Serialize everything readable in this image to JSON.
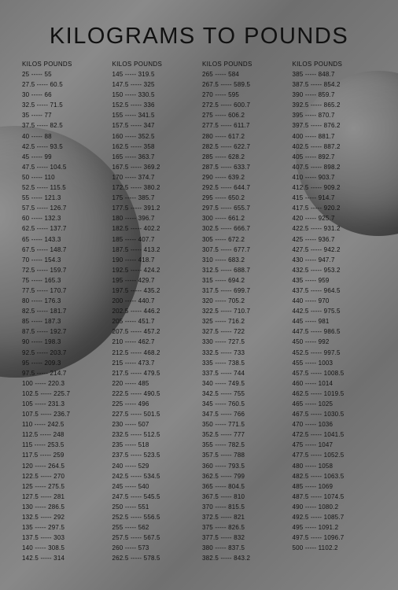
{
  "title": "KILOGRAMS TO POUNDS",
  "header": {
    "kilos": "KILOS",
    "pounds": "POUNDS"
  },
  "columns": [
    [
      [
        "25",
        "55"
      ],
      [
        "27.5",
        "60.5"
      ],
      [
        "30",
        "66"
      ],
      [
        "32.5",
        "71.5"
      ],
      [
        "35",
        "77"
      ],
      [
        "37.5",
        "82.5"
      ],
      [
        "40",
        "88"
      ],
      [
        "42.5",
        "93.5"
      ],
      [
        "45",
        "99"
      ],
      [
        "47.5",
        "104.5"
      ],
      [
        "50",
        "110"
      ],
      [
        "52.5",
        "115.5"
      ],
      [
        "55",
        "121.3"
      ],
      [
        "57.5",
        "126.7"
      ],
      [
        "60",
        "132.3"
      ],
      [
        "62.5",
        "137.7"
      ],
      [
        "65",
        "143.3"
      ],
      [
        "67.5",
        "148.7"
      ],
      [
        "70",
        "154.3"
      ],
      [
        "72.5",
        "159.7"
      ],
      [
        "75",
        "165.3"
      ],
      [
        "77.5",
        "170.7"
      ],
      [
        "80",
        "176.3"
      ],
      [
        "82.5",
        "181.7"
      ],
      [
        "85",
        "187.3"
      ],
      [
        "87.5",
        "192.7"
      ],
      [
        "90",
        "198.3"
      ],
      [
        "92.5",
        "203.7"
      ],
      [
        "95",
        "209.3"
      ],
      [
        "97.5",
        "214.7"
      ],
      [
        "100",
        "220.3"
      ],
      [
        "102.5",
        "225.7"
      ],
      [
        "105",
        "231.3"
      ],
      [
        "107.5",
        "236.7"
      ],
      [
        "110",
        "242.5"
      ],
      [
        "112.5",
        "248"
      ],
      [
        "115",
        "253.5"
      ],
      [
        "117.5",
        "259"
      ],
      [
        "120",
        "264.5"
      ],
      [
        "122.5",
        "270"
      ],
      [
        "125",
        "275.5"
      ],
      [
        "127.5",
        "281"
      ],
      [
        "130",
        "286.5"
      ],
      [
        "132.5",
        "292"
      ],
      [
        "135",
        "297.5"
      ],
      [
        "137.5",
        "303"
      ],
      [
        "140",
        "308.5"
      ],
      [
        "142.5",
        "314"
      ]
    ],
    [
      [
        "145",
        "319.5"
      ],
      [
        "147.5",
        "325"
      ],
      [
        "150",
        "330.5"
      ],
      [
        "152.5",
        "336"
      ],
      [
        "155",
        "341.5"
      ],
      [
        "157.5",
        "347"
      ],
      [
        "160",
        "352.5"
      ],
      [
        "162.5",
        "358"
      ],
      [
        "165",
        "363.7"
      ],
      [
        "167.5",
        "369.2"
      ],
      [
        "170",
        "374.7"
      ],
      [
        "172.5",
        "380.2"
      ],
      [
        "175",
        "385.7"
      ],
      [
        "177.5",
        "391.2"
      ],
      [
        "180",
        "396.7"
      ],
      [
        "182.5",
        "402.2"
      ],
      [
        "185",
        "407.7"
      ],
      [
        "187.5",
        "413.2"
      ],
      [
        "190",
        "418.7"
      ],
      [
        "192.5",
        "424.2"
      ],
      [
        "195",
        "429.7"
      ],
      [
        "197.5",
        "435.2"
      ],
      [
        "200",
        "440.7"
      ],
      [
        "202.5",
        "446.2"
      ],
      [
        "205",
        "451.7"
      ],
      [
        "207.5",
        "457.2"
      ],
      [
        "210",
        "462.7"
      ],
      [
        "212.5",
        "468.2"
      ],
      [
        "215",
        "473.7"
      ],
      [
        "217.5",
        "479.5"
      ],
      [
        "220",
        "485"
      ],
      [
        "222.5",
        "490.5"
      ],
      [
        "225",
        "496"
      ],
      [
        "227.5",
        "501.5"
      ],
      [
        "230",
        "507"
      ],
      [
        "232.5",
        "512.5"
      ],
      [
        "235",
        "518"
      ],
      [
        "237.5",
        "523.5"
      ],
      [
        "240",
        "529"
      ],
      [
        "242.5",
        "534.5"
      ],
      [
        "245",
        "540"
      ],
      [
        "247.5",
        "545.5"
      ],
      [
        "250",
        "551"
      ],
      [
        "252.5",
        "556.5"
      ],
      [
        "255",
        "562"
      ],
      [
        "257.5",
        "567.5"
      ],
      [
        "260",
        "573"
      ],
      [
        "262.5",
        "578.5"
      ]
    ],
    [
      [
        "265",
        "584"
      ],
      [
        "267.5",
        "589.5"
      ],
      [
        "270",
        "595"
      ],
      [
        "272.5",
        "600.7"
      ],
      [
        "275",
        "606.2"
      ],
      [
        "277.5",
        "611.7"
      ],
      [
        "280",
        "617.2"
      ],
      [
        "282.5",
        "622.7"
      ],
      [
        "285",
        "628.2"
      ],
      [
        "287.5",
        "633.7"
      ],
      [
        "290",
        "639.2"
      ],
      [
        "292.5",
        "644.7"
      ],
      [
        "295",
        "650.2"
      ],
      [
        "297.5",
        "655.7"
      ],
      [
        "300",
        "661.2"
      ],
      [
        "302.5",
        "666.7"
      ],
      [
        "305",
        "672.2"
      ],
      [
        "307.5",
        "677.7"
      ],
      [
        "310",
        "683.2"
      ],
      [
        "312.5",
        "688.7"
      ],
      [
        "315",
        "694.2"
      ],
      [
        "317.5",
        "699.7"
      ],
      [
        "320",
        "705.2"
      ],
      [
        "322.5",
        "710.7"
      ],
      [
        "325",
        "716.2"
      ],
      [
        "327.5",
        "722"
      ],
      [
        "330",
        "727.5"
      ],
      [
        "332.5",
        "733"
      ],
      [
        "335",
        "738.5"
      ],
      [
        "337.5",
        "744"
      ],
      [
        "340",
        "749.5"
      ],
      [
        "342.5",
        "755"
      ],
      [
        "345",
        "760.5"
      ],
      [
        "347.5",
        "766"
      ],
      [
        "350",
        "771.5"
      ],
      [
        "352.5",
        "777"
      ],
      [
        "355",
        "782.5"
      ],
      [
        "357.5",
        "788"
      ],
      [
        "360",
        "793.5"
      ],
      [
        "362.5",
        "799"
      ],
      [
        "365",
        "804.5"
      ],
      [
        "367.5",
        "810"
      ],
      [
        "370",
        "815.5"
      ],
      [
        "372.5",
        "821"
      ],
      [
        "375",
        "826.5"
      ],
      [
        "377.5",
        "832"
      ],
      [
        "380",
        "837.5"
      ],
      [
        "382.5",
        "843.2"
      ]
    ],
    [
      [
        "385",
        "848.7"
      ],
      [
        "387.5",
        "854.2"
      ],
      [
        "390",
        "859.7"
      ],
      [
        "392.5",
        "865.2"
      ],
      [
        "395",
        "870.7"
      ],
      [
        "397.5",
        "876.2"
      ],
      [
        "400",
        "881.7"
      ],
      [
        "402.5",
        "887.2"
      ],
      [
        "405",
        "892.7"
      ],
      [
        "407.5",
        "898.2"
      ],
      [
        "410",
        "903.7"
      ],
      [
        "412.5",
        "909.2"
      ],
      [
        "415",
        "914.7"
      ],
      [
        "417.5",
        "920.2"
      ],
      [
        "420",
        "925.7"
      ],
      [
        "422.5",
        "931.2"
      ],
      [
        "425",
        "936.7"
      ],
      [
        "427.5",
        "942.2"
      ],
      [
        "430",
        "947.7"
      ],
      [
        "432.5",
        "953.2"
      ],
      [
        "435",
        "959"
      ],
      [
        "437.5",
        "964.5"
      ],
      [
        "440",
        "970"
      ],
      [
        "442.5",
        "975.5"
      ],
      [
        "445",
        "981"
      ],
      [
        "447.5",
        "986.5"
      ],
      [
        "450",
        "992"
      ],
      [
        "452.5",
        "997.5"
      ],
      [
        "455",
        "1003"
      ],
      [
        "457.5",
        "1008.5"
      ],
      [
        "460",
        "1014"
      ],
      [
        "462.5",
        "1019.5"
      ],
      [
        "465",
        "1025"
      ],
      [
        "467.5",
        "1030.5"
      ],
      [
        "470",
        "1036"
      ],
      [
        "472.5",
        "1041.5"
      ],
      [
        "475",
        "1047"
      ],
      [
        "477.5",
        "1052.5"
      ],
      [
        "480",
        "1058"
      ],
      [
        "482.5",
        "1063.5"
      ],
      [
        "485",
        "1069"
      ],
      [
        "487.5",
        "1074.5"
      ],
      [
        "490",
        "1080.2"
      ],
      [
        "492.5",
        "1085.7"
      ],
      [
        "495",
        "1091.2"
      ],
      [
        "497.5",
        "1096.7"
      ],
      [
        "500",
        "1102.2"
      ]
    ]
  ]
}
